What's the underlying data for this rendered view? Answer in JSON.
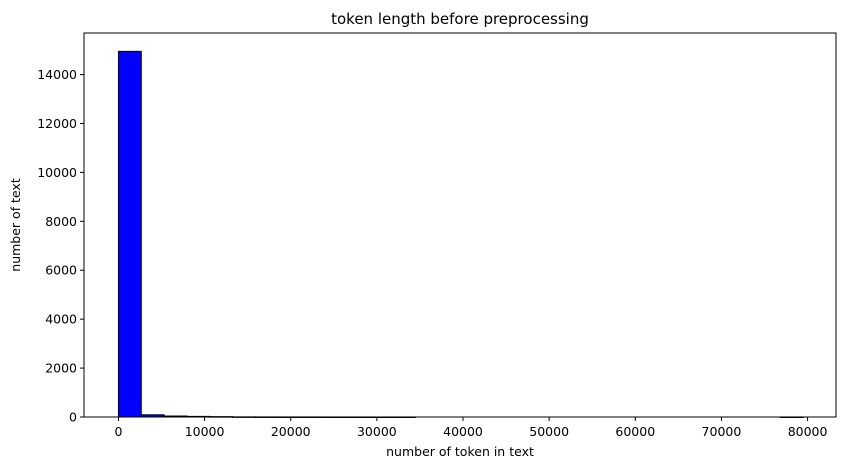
{
  "chart_data": {
    "type": "bar",
    "title": "token length before preprocessing",
    "xlabel": "number of token in text",
    "ylabel": "number of text",
    "xlim": [
      -4000,
      83300
    ],
    "ylim": [
      0,
      15700
    ],
    "xticks": [
      0,
      10000,
      20000,
      30000,
      40000,
      50000,
      60000,
      70000,
      80000
    ],
    "yticks": [
      0,
      2000,
      4000,
      6000,
      8000,
      10000,
      12000,
      14000
    ],
    "bin_edges": [
      0,
      2650,
      5300,
      7950,
      10600,
      13250,
      15900,
      18550,
      21200,
      23850,
      26500,
      29150,
      31800,
      34450,
      37100,
      39750,
      42400,
      45050,
      47700,
      50350,
      53000,
      55650,
      58300,
      60950,
      63600,
      66250,
      68900,
      71550,
      74200,
      76850,
      79500
    ],
    "counts": [
      14950,
      90,
      40,
      25,
      15,
      5,
      3,
      2,
      2,
      1,
      1,
      1,
      1,
      0,
      0,
      0,
      0,
      0,
      0,
      0,
      0,
      0,
      0,
      0,
      0,
      0,
      0,
      0,
      0,
      1
    ],
    "bar_color": "#0000ff",
    "edge_color": "#000000",
    "grid": false
  }
}
